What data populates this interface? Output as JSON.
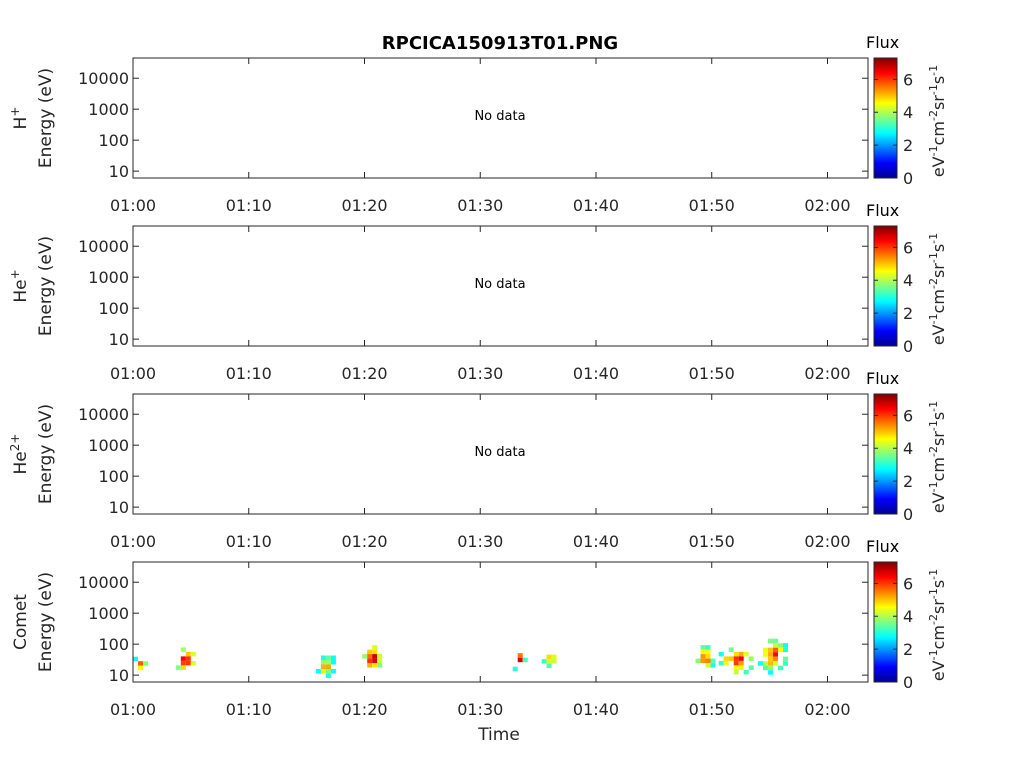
{
  "title": "RPCICA150913T01.PNG",
  "xlabel": "Time",
  "colorbar": {
    "label": "Flux",
    "unit": "eV-1cm-2sr-1s-1",
    "ticks": [
      "0",
      "2",
      "4",
      "6"
    ],
    "range": [
      0,
      7.3
    ],
    "colormap": "jet"
  },
  "chart_data": [
    {
      "type": "heatmap",
      "species": "H",
      "species_sup": "+",
      "ylabel": "Energy (eV)",
      "x_ticks": [
        "01:00",
        "01:10",
        "01:20",
        "01:30",
        "01:40",
        "01:50",
        "02:00"
      ],
      "x_range_minutes": [
        0,
        63.5
      ],
      "y_ticks": [
        "10",
        "100",
        "1000",
        "10000"
      ],
      "y_scale": "log",
      "y_range": [
        6,
        45000
      ],
      "annotation": "No data",
      "blobs": []
    },
    {
      "type": "heatmap",
      "species": "He",
      "species_sup": "+",
      "ylabel": "Energy (eV)",
      "x_ticks": [
        "01:00",
        "01:10",
        "01:20",
        "01:30",
        "01:40",
        "01:50",
        "02:00"
      ],
      "x_range_minutes": [
        0,
        63.5
      ],
      "y_ticks": [
        "10",
        "100",
        "1000",
        "10000"
      ],
      "y_scale": "log",
      "y_range": [
        6,
        45000
      ],
      "annotation": "No data",
      "blobs": []
    },
    {
      "type": "heatmap",
      "species": "He",
      "species_sup": "2+",
      "ylabel": "Energy (eV)",
      "x_ticks": [
        "01:00",
        "01:10",
        "01:20",
        "01:30",
        "01:40",
        "01:50",
        "02:00"
      ],
      "x_range_minutes": [
        0,
        63.5
      ],
      "y_ticks": [
        "10",
        "100",
        "1000",
        "10000"
      ],
      "y_scale": "log",
      "y_range": [
        6,
        45000
      ],
      "annotation": "No data",
      "blobs": []
    },
    {
      "type": "heatmap",
      "species": "Comet",
      "species_sup": "",
      "ylabel": "Energy (eV)",
      "x_ticks": [
        "01:00",
        "01:10",
        "01:20",
        "01:30",
        "01:40",
        "01:50",
        "02:00"
      ],
      "x_range_minutes": [
        0,
        63.5
      ],
      "y_ticks": [
        "10",
        "100",
        "1000",
        "10000"
      ],
      "y_scale": "log",
      "y_range": [
        6,
        45000
      ],
      "annotation": "",
      "blobs": [
        {
          "t_start": 0.0,
          "t_end": 1.4,
          "e_low": 12,
          "e_high": 55,
          "peak": 5.8
        },
        {
          "t_start": 2.9,
          "t_end": 3.0,
          "e_low": 38,
          "e_high": 48,
          "peak": 3.0
        },
        {
          "t_start": 3.7,
          "t_end": 5.6,
          "e_low": 12,
          "e_high": 110,
          "peak": 7.2
        },
        {
          "t_start": 15.8,
          "t_end": 17.6,
          "e_low": 10,
          "e_high": 60,
          "peak": 5.5
        },
        {
          "t_start": 19.8,
          "t_end": 21.5,
          "e_low": 14,
          "e_high": 130,
          "peak": 7.3
        },
        {
          "t_start": 32.8,
          "t_end": 34.0,
          "e_low": 15,
          "e_high": 100,
          "peak": 6.5
        },
        {
          "t_start": 35.3,
          "t_end": 37.0,
          "e_low": 18,
          "e_high": 90,
          "peak": 5.5
        },
        {
          "t_start": 48.6,
          "t_end": 50.3,
          "e_low": 15,
          "e_high": 130,
          "peak": 6.2
        },
        {
          "t_start": 50.6,
          "t_end": 53.8,
          "e_low": 12,
          "e_high": 110,
          "peak": 6.8
        },
        {
          "t_start": 54.0,
          "t_end": 56.6,
          "e_low": 14,
          "e_high": 210,
          "peak": 6.3
        }
      ]
    }
  ]
}
